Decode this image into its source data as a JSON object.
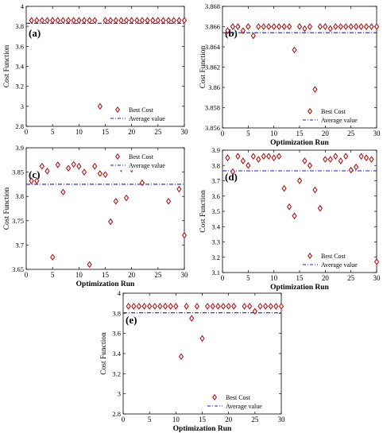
{
  "figure": {
    "colors": {
      "marker": "#b01818",
      "average": "#1a1ad0",
      "axis": "#000000",
      "background": "#ffffff"
    },
    "marker_shape": "diamond",
    "average_line_style": "dash-dot"
  },
  "chart_data": [
    {
      "panel": "(a)",
      "type": "scatter",
      "xlabel": "",
      "ylabel": "Cost Function",
      "xlim": [
        0,
        30
      ],
      "ylim": [
        2.8,
        4.0
      ],
      "xticks": [
        "0",
        "5",
        "10",
        "15",
        "20",
        "25",
        "30"
      ],
      "yticks": [
        "2.8",
        "3",
        "3.2",
        "3.4",
        "3.6",
        "3.8",
        "4"
      ],
      "legend": {
        "placement": "bottom-right",
        "entries": [
          "Best Cost",
          "Average value"
        ]
      },
      "series": [
        {
          "name": "Best Cost",
          "x": [
            1,
            2,
            3,
            4,
            5,
            6,
            7,
            8,
            9,
            10,
            11,
            12,
            13,
            14,
            15,
            16,
            17,
            18,
            19,
            20,
            21,
            22,
            23,
            24,
            25,
            26,
            27,
            28,
            29,
            30
          ],
          "y": [
            3.86,
            3.86,
            3.86,
            3.86,
            3.86,
            3.86,
            3.86,
            3.86,
            3.86,
            3.86,
            3.86,
            3.86,
            3.86,
            3.0,
            3.86,
            3.86,
            3.86,
            3.86,
            3.86,
            3.86,
            3.86,
            3.86,
            3.86,
            3.86,
            3.86,
            3.86,
            3.86,
            3.86,
            3.86,
            3.86
          ]
        },
        {
          "name": "Average value",
          "y": 3.831
        }
      ]
    },
    {
      "panel": "(b)",
      "type": "scatter",
      "xlabel": "Optimization Run",
      "ylabel": "Cost Function",
      "xlim": [
        0,
        30
      ],
      "ylim": [
        3.856,
        3.868
      ],
      "xticks": [
        "0",
        "5",
        "10",
        "15",
        "20",
        "25",
        "30"
      ],
      "yticks": [
        "3.856",
        "3.858",
        "3.86",
        "3.862",
        "3.864",
        "3.866",
        "3.868"
      ],
      "legend": {
        "placement": "bottom-right",
        "entries": [
          "Best Cost",
          "Average value"
        ]
      },
      "series": [
        {
          "name": "Best Cost",
          "x": [
            1,
            2,
            3,
            4,
            5,
            6,
            7,
            8,
            9,
            10,
            11,
            12,
            13,
            14,
            15,
            16,
            17,
            18,
            19,
            20,
            21,
            22,
            23,
            24,
            25,
            26,
            27,
            28,
            29,
            30
          ],
          "y": [
            3.8656,
            3.866,
            3.866,
            3.8656,
            3.866,
            3.8651,
            3.866,
            3.866,
            3.866,
            3.866,
            3.866,
            3.866,
            3.866,
            3.8637,
            3.866,
            3.8658,
            3.866,
            3.8598,
            3.866,
            3.866,
            3.8658,
            3.866,
            3.866,
            3.866,
            3.866,
            3.866,
            3.866,
            3.866,
            3.866,
            3.866
          ]
        },
        {
          "name": "Average value",
          "y": 3.8654
        }
      ]
    },
    {
      "panel": "(c)",
      "type": "scatter",
      "xlabel": "Optimization Run",
      "ylabel": "Cost Function",
      "xlim": [
        0,
        30
      ],
      "ylim": [
        3.65,
        3.9
      ],
      "xticks": [
        "0",
        "5",
        "10",
        "15",
        "20",
        "25",
        "30"
      ],
      "yticks": [
        "3.65",
        "3.7",
        "3.75",
        "3.8",
        "3.85",
        "3.9"
      ],
      "legend": {
        "placement": "top-right",
        "entries": [
          "Best Cost",
          "Average value"
        ]
      },
      "series": [
        {
          "name": "Best Cost",
          "x": [
            1,
            2,
            3,
            4,
            5,
            6,
            7,
            8,
            9,
            10,
            11,
            12,
            13,
            14,
            15,
            16,
            17,
            18,
            19,
            20,
            21,
            22,
            23,
            24,
            25,
            26,
            27,
            28,
            29,
            30
          ],
          "y": [
            3.832,
            3.832,
            3.862,
            3.852,
            3.675,
            3.865,
            3.809,
            3.858,
            3.866,
            3.862,
            3.85,
            3.66,
            3.862,
            3.847,
            3.845,
            3.748,
            3.79,
            3.857,
            3.797,
            3.856,
            3.862,
            3.828,
            3.866,
            3.861,
            3.86,
            3.862,
            3.79,
            3.865,
            3.815,
            3.72
          ]
        },
        {
          "name": "Average value",
          "y": 3.825
        }
      ]
    },
    {
      "panel": "(d)",
      "type": "scatter",
      "xlabel": "Optimization Run",
      "ylabel": "Cost Function",
      "xlim": [
        0,
        30
      ],
      "ylim": [
        3.1,
        3.9
      ],
      "xticks": [
        "0",
        "5",
        "10",
        "15",
        "20",
        "25",
        "30"
      ],
      "yticks": [
        "3.1",
        "3.2",
        "3.3",
        "3.4",
        "3.5",
        "3.6",
        "3.7",
        "3.8",
        "3.9"
      ],
      "legend": {
        "placement": "bottom-right",
        "entries": [
          "Best Cost",
          "Average value"
        ]
      },
      "series": [
        {
          "name": "Best Cost",
          "x": [
            1,
            2,
            3,
            4,
            5,
            6,
            7,
            8,
            9,
            10,
            11,
            12,
            13,
            14,
            15,
            16,
            17,
            18,
            19,
            20,
            21,
            22,
            23,
            24,
            25,
            26,
            27,
            28,
            29,
            30
          ],
          "y": [
            3.85,
            3.76,
            3.86,
            3.83,
            3.8,
            3.86,
            3.84,
            3.86,
            3.86,
            3.85,
            3.86,
            3.65,
            3.53,
            3.47,
            3.7,
            3.83,
            3.8,
            3.64,
            3.52,
            3.84,
            3.84,
            3.86,
            3.83,
            3.86,
            3.77,
            3.79,
            3.86,
            3.85,
            3.84,
            3.17
          ]
        },
        {
          "name": "Average value",
          "y": 3.765
        }
      ]
    },
    {
      "panel": "(e)",
      "type": "scatter",
      "xlabel": "Optimization Run",
      "ylabel": "Cost Function",
      "xlim": [
        0,
        30
      ],
      "ylim": [
        2.8,
        4.0
      ],
      "xticks": [
        "0",
        "5",
        "10",
        "15",
        "20",
        "25",
        "30"
      ],
      "yticks": [
        "2.8",
        "3",
        "3.2",
        "3.4",
        "3.6",
        "3.8",
        "4"
      ],
      "legend": {
        "placement": "bottom-right",
        "entries": [
          "Best Cost",
          "Average value"
        ]
      },
      "series": [
        {
          "name": "Best Cost",
          "x": [
            1,
            2,
            3,
            4,
            5,
            6,
            7,
            8,
            9,
            10,
            11,
            12,
            13,
            14,
            15,
            16,
            17,
            18,
            19,
            20,
            21,
            22,
            23,
            24,
            25,
            26,
            27,
            28,
            29,
            30
          ],
          "y": [
            3.87,
            3.87,
            3.87,
            3.87,
            3.87,
            3.87,
            3.87,
            3.87,
            3.87,
            3.87,
            3.37,
            3.87,
            3.75,
            3.87,
            3.55,
            3.87,
            3.87,
            3.87,
            3.87,
            3.87,
            3.87,
            2.98,
            3.87,
            3.87,
            3.82,
            3.87,
            3.87,
            3.87,
            3.87,
            3.87
          ]
        },
        {
          "name": "Average value",
          "y": 3.805
        }
      ]
    }
  ]
}
